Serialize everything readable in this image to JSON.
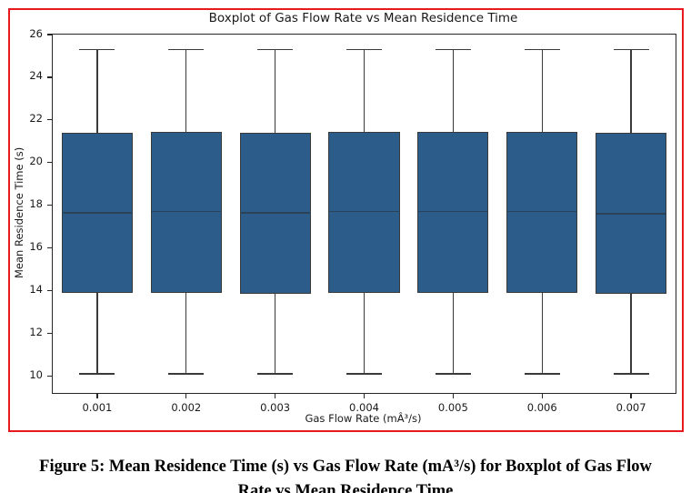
{
  "figure": {
    "border_color": "#e8191f"
  },
  "chart_data": {
    "type": "boxplot",
    "title": "Boxplot of Gas Flow Rate vs Mean Residence Time",
    "xlabel": "Gas Flow Rate (mÂ³/s)",
    "ylabel": "Mean Residence Time (s)",
    "categories": [
      "0.001",
      "0.002",
      "0.003",
      "0.004",
      "0.005",
      "0.006",
      "0.007"
    ],
    "yticks": [
      10,
      12,
      14,
      16,
      18,
      20,
      22,
      24,
      26
    ],
    "ylim": [
      9.2,
      26.0
    ],
    "grid": false,
    "legend": "none",
    "box_fill_color": "#2b5c8a",
    "box_edge_color": "#3a3a3a",
    "whisker_color": "#3a3a3a",
    "median_color": "#2c4257",
    "boxes": [
      {
        "category": "0.001",
        "whisker_low": 10.1,
        "q1": 13.9,
        "median": 17.65,
        "q3": 21.4,
        "whisker_high": 25.3
      },
      {
        "category": "0.002",
        "whisker_low": 10.1,
        "q1": 13.9,
        "median": 17.7,
        "q3": 21.45,
        "whisker_high": 25.3
      },
      {
        "category": "0.003",
        "whisker_low": 10.1,
        "q1": 13.85,
        "median": 17.65,
        "q3": 21.4,
        "whisker_high": 25.3
      },
      {
        "category": "0.004",
        "whisker_low": 10.1,
        "q1": 13.9,
        "median": 17.7,
        "q3": 21.45,
        "whisker_high": 25.3
      },
      {
        "category": "0.005",
        "whisker_low": 10.1,
        "q1": 13.9,
        "median": 17.7,
        "q3": 21.45,
        "whisker_high": 25.3
      },
      {
        "category": "0.006",
        "whisker_low": 10.1,
        "q1": 13.9,
        "median": 17.7,
        "q3": 21.45,
        "whisker_high": 25.3
      },
      {
        "category": "0.007",
        "whisker_low": 10.1,
        "q1": 13.85,
        "median": 17.6,
        "q3": 21.4,
        "whisker_high": 25.3
      }
    ]
  },
  "caption": {
    "line1": "Figure 5: Mean Residence Time (s) vs Gas Flow Rate (mA³/s) for Boxplot of Gas Flow",
    "line2": "Rate vs Mean Residence Time"
  }
}
